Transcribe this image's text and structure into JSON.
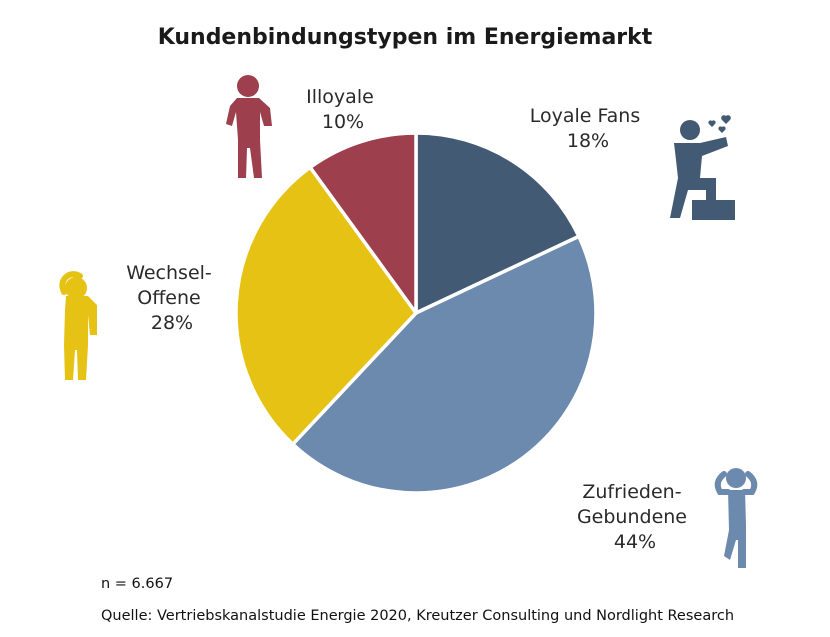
{
  "chart_data": {
    "type": "pie",
    "title": "Kundenbindungstypen im Energiemarkt",
    "start_angle_deg": 0,
    "direction": "clockwise",
    "slices": [
      {
        "label_lines": [
          "Loyale Fans"
        ],
        "value": 18,
        "value_label": "18%",
        "color": "#435a75",
        "icon": "celebrating-person-icon",
        "icon_color": "#435a75"
      },
      {
        "label_lines": [
          "Zufrieden-",
          "Gebundene"
        ],
        "value": 44,
        "value_label": "44%",
        "color": "#6c8aad",
        "icon": "relaxed-person-icon",
        "icon_color": "#6c8aad"
      },
      {
        "label_lines": [
          "Wechsel-",
          "Offene"
        ],
        "value": 28,
        "value_label": "28%",
        "color": "#e5c213",
        "icon": "thinking-person-icon",
        "icon_color": "#e5c213"
      },
      {
        "label_lines": [
          "Illoyale"
        ],
        "value": 10,
        "value_label": "10%",
        "color": "#9d3f4c",
        "icon": "unhappy-person-icon",
        "icon_color": "#9d3f4c"
      }
    ]
  },
  "footer": {
    "sample_size": "n = 6.667",
    "source": "Quelle: Vertriebskanalstudie Energie 2020, Kreutzer Consulting und Nordlight Research"
  }
}
